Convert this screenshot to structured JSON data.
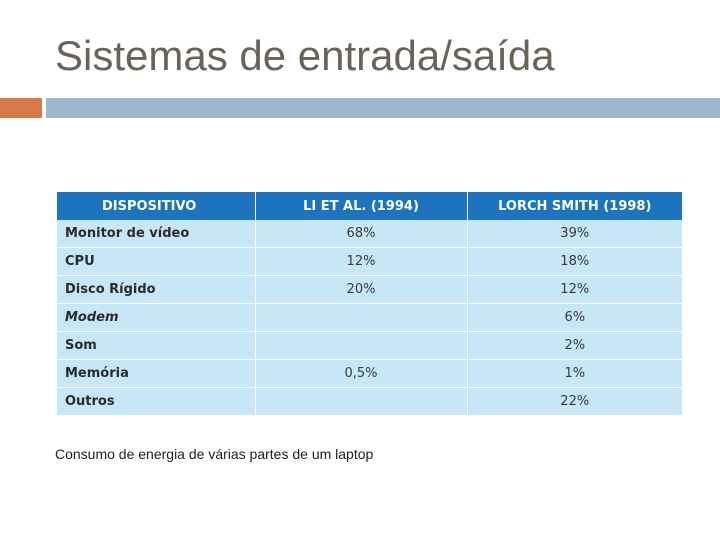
{
  "slide": {
    "title": "Sistemas de entrada/saída",
    "caption": "Consumo de energia de várias partes de um laptop",
    "accent_color": "#d9784a",
    "bar_color": "#9fb7cc"
  },
  "table": {
    "header_color": "#1e73be",
    "row_color": "#c7e6f7",
    "columns": [
      "DISPOSITIVO",
      "LI ET AL. (1994)",
      "LORCH SMITH (1998)"
    ],
    "rows": [
      {
        "device": "Monitor de vídeo",
        "li": "68%",
        "lorch": "39%",
        "italic": false
      },
      {
        "device": "CPU",
        "li": "12%",
        "lorch": "18%",
        "italic": false
      },
      {
        "device": "Disco Rígido",
        "li": "20%",
        "lorch": "12%",
        "italic": false
      },
      {
        "device": "Modem",
        "li": "",
        "lorch": "6%",
        "italic": true
      },
      {
        "device": "Som",
        "li": "",
        "lorch": "2%",
        "italic": false
      },
      {
        "device": "Memória",
        "li": "0,5%",
        "lorch": "1%",
        "italic": false
      },
      {
        "device": "Outros",
        "li": "",
        "lorch": "22%",
        "italic": false
      }
    ]
  }
}
